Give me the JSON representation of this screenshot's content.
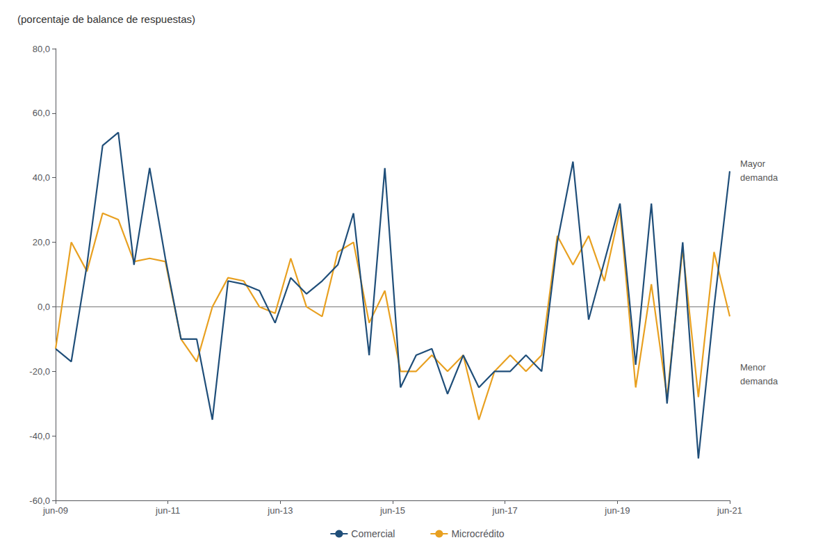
{
  "chart_data": {
    "type": "line",
    "title": "(porcentaje de balance de respuestas)",
    "annotations": [
      "Mayor\ndemanda",
      "Menor\ndemanda"
    ],
    "x": [
      0,
      1.116279,
      2.232558,
      3.348837,
      4.465116,
      5.581395,
      6.697674,
      7.813953,
      8.930233,
      10.046512,
      11.162791,
      12.27907,
      13.395349,
      14.511628,
      15.627907,
      16.744186,
      17.860465,
      18.976744,
      20.093023,
      21.209302,
      22.325581,
      23.44186,
      24.55814,
      25.674419,
      26.790698,
      27.906977,
      29.023256,
      30.139535,
      31.255814,
      32.372093,
      33.488372,
      34.604651,
      35.72093,
      36.837209,
      37.953488,
      39.069767,
      40.186047,
      41.302326,
      42.418605,
      43.534884,
      44.651163,
      45.767442,
      46.883721,
      48
    ],
    "series": [
      {
        "name": "Comercial",
        "color": "#1f4e79",
        "values": [
          -13,
          -17,
          13,
          50,
          54,
          13,
          43,
          15,
          -10,
          -10,
          -35,
          8,
          7,
          5,
          -5,
          9,
          4,
          8,
          13,
          29,
          -15,
          43,
          -25,
          -15,
          -13,
          -27,
          -15,
          -25,
          -20,
          -20,
          -15,
          -20,
          20,
          45,
          -4,
          14,
          32,
          -18,
          32,
          -30,
          20,
          -47,
          0,
          42
        ]
      },
      {
        "name": "Microcrédito",
        "color": "#e8a020",
        "values": [
          -13,
          20,
          11,
          29,
          27,
          14,
          15,
          14,
          -10,
          -17,
          0,
          9,
          8,
          0,
          -2,
          15,
          0,
          -3,
          17,
          20,
          -5,
          5,
          -20,
          -20,
          -15,
          -20,
          -15,
          -35,
          -20,
          -15,
          -20,
          -15,
          22,
          13,
          22,
          8,
          30,
          -25,
          7,
          -28,
          18,
          -28,
          17,
          -3
        ]
      }
    ],
    "xlim": [
      0,
      48
    ],
    "xticks": [
      {
        "value": 0,
        "label": "jun-09"
      },
      {
        "value": 8,
        "label": "jun-11"
      },
      {
        "value": 16,
        "label": "jun-13"
      },
      {
        "value": 24,
        "label": "jun-15"
      },
      {
        "value": 32,
        "label": "jun-17"
      },
      {
        "value": 40,
        "label": "jun-19"
      },
      {
        "value": 48,
        "label": "jun-21"
      }
    ],
    "ylim": [
      -60,
      80
    ],
    "yticks": [
      {
        "value": -60,
        "label": "-60,0"
      },
      {
        "value": -40,
        "label": "-40,0"
      },
      {
        "value": -20,
        "label": "-20,0"
      },
      {
        "value": 0,
        "label": "0,0"
      },
      {
        "value": 20,
        "label": "20,0"
      },
      {
        "value": 40,
        "label": "40,0"
      },
      {
        "value": 60,
        "label": "60,0"
      },
      {
        "value": 80,
        "label": "80,0"
      }
    ],
    "grid": false,
    "legend": "bottom"
  }
}
